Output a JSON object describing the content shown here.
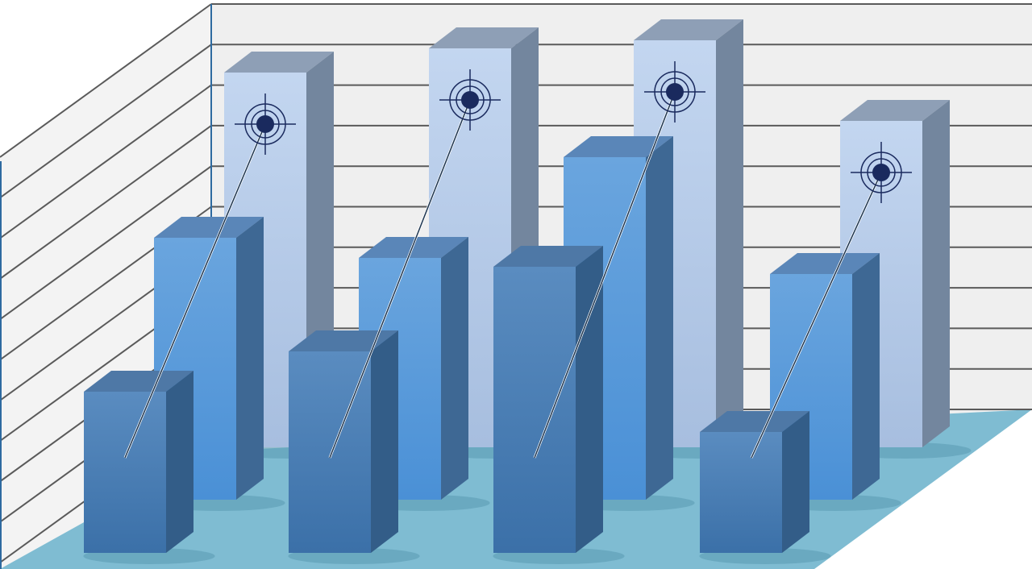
{
  "chart_data": {
    "type": "bar",
    "style": "3d-grouped",
    "title": "",
    "xlabel": "",
    "ylabel": "",
    "categories": [
      "",
      "",
      "",
      ""
    ],
    "ylim": [
      0,
      11
    ],
    "grid": true,
    "legend": "none",
    "series": [
      {
        "row": "back",
        "color": "#b5cbe9",
        "values": [
          9.3,
          9.9,
          10.1,
          8.1
        ],
        "markers": "target-crosshair"
      },
      {
        "row": "middle",
        "color": "#5b9bd8",
        "values": [
          6.5,
          6.0,
          8.5,
          5.6
        ]
      },
      {
        "row": "front",
        "color": "#4a7db3",
        "values": [
          4.0,
          5.0,
          7.1,
          3.0
        ]
      }
    ],
    "colors": {
      "wall": "#efefef",
      "gridline": "#5a5a5a",
      "floor": "#7fbcd2",
      "axis": "#2e6aa0",
      "target": "#1a2a5e"
    }
  }
}
